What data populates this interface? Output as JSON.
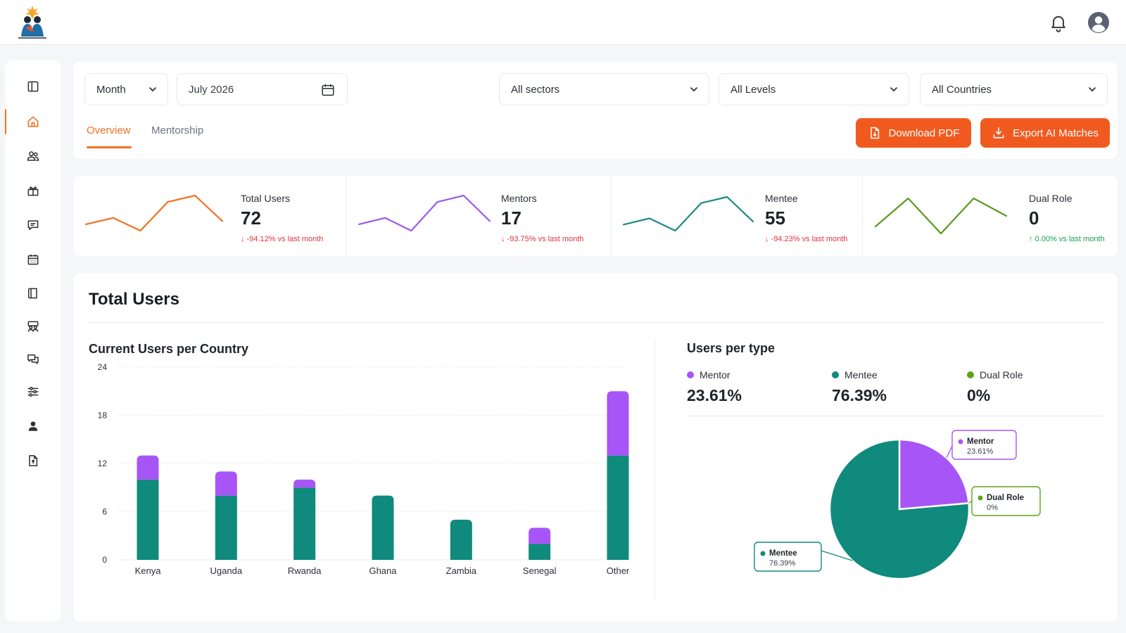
{
  "header": {
    "logo_icon": "brand-logo-icon",
    "notification_icon": "bell-icon",
    "account_icon": "user-avatar-icon"
  },
  "sidebar": {
    "items": [
      {
        "icon": "layout-icon",
        "active": false
      },
      {
        "icon": "home-icon",
        "active": true
      },
      {
        "icon": "users-icon",
        "active": false
      },
      {
        "icon": "gift-icon",
        "active": false
      },
      {
        "icon": "message-icon",
        "active": false
      },
      {
        "icon": "calendar-icon",
        "active": false
      },
      {
        "icon": "book-icon",
        "active": false
      },
      {
        "icon": "group-icon",
        "active": false
      },
      {
        "icon": "chat-icon",
        "active": false
      },
      {
        "icon": "sliders-icon",
        "active": false
      },
      {
        "icon": "person-icon",
        "active": false
      },
      {
        "icon": "document-icon",
        "active": false
      }
    ]
  },
  "filters": {
    "period": "Month",
    "date": "July 2026",
    "sector": "All sectors",
    "level": "All Levels",
    "country": "All Countries"
  },
  "tabs": [
    {
      "label": "Overview",
      "active": true
    },
    {
      "label": "Mentorship",
      "active": false
    }
  ],
  "actions": {
    "download_pdf": "Download PDF",
    "export_matches": "Export AI Matches"
  },
  "stats": [
    {
      "label": "Total Users",
      "value": "72",
      "change": "-94.12% vs last month",
      "direction": "down",
      "color": "#f37021",
      "trend": [
        5,
        7,
        3,
        12,
        14,
        6
      ]
    },
    {
      "label": "Mentors",
      "value": "17",
      "change": "-93.75% vs last month",
      "direction": "down",
      "color": "#9b59f0",
      "trend": [
        5,
        7,
        3,
        12,
        14,
        6
      ]
    },
    {
      "label": "Mentee",
      "value": "55",
      "change": "-94.23% vs last month",
      "direction": "down",
      "color": "#1d8a80",
      "trend": [
        5,
        7,
        3,
        12,
        14,
        6
      ]
    },
    {
      "label": "Dual Role",
      "value": "0",
      "change": "0.00% vs last month",
      "direction": "up",
      "color": "#5a9a1c",
      "trend": [
        4,
        12,
        2,
        12,
        7
      ]
    }
  ],
  "section": {
    "title": "Total Users"
  },
  "colors": {
    "mentor": "#a855f7",
    "mentee": "#0f8a7c",
    "dual": "#5fa31a",
    "accent": "#f15a1f"
  },
  "chart_data": [
    {
      "type": "bar",
      "stacked": true,
      "title": "Current Users per Country",
      "categories": [
        "Kenya",
        "Uganda",
        "Rwanda",
        "Ghana",
        "Zambia",
        "Senegal",
        "Other"
      ],
      "series": [
        {
          "name": "Mentee",
          "values": [
            10,
            8,
            9,
            8,
            5,
            2,
            13
          ]
        },
        {
          "name": "Mentor",
          "values": [
            3,
            3,
            1,
            0,
            0,
            2,
            8
          ]
        }
      ],
      "yticks": [
        0,
        6,
        12,
        18,
        24
      ],
      "ylim": [
        0,
        24
      ],
      "grid": true
    },
    {
      "type": "pie",
      "title": "Users per type",
      "slices": [
        {
          "name": "Mentor",
          "value": 23.61,
          "label": "23.61%"
        },
        {
          "name": "Dual Role",
          "value": 0,
          "label": "0%"
        },
        {
          "name": "Mentee",
          "value": 76.39,
          "label": "76.39%"
        }
      ]
    }
  ]
}
